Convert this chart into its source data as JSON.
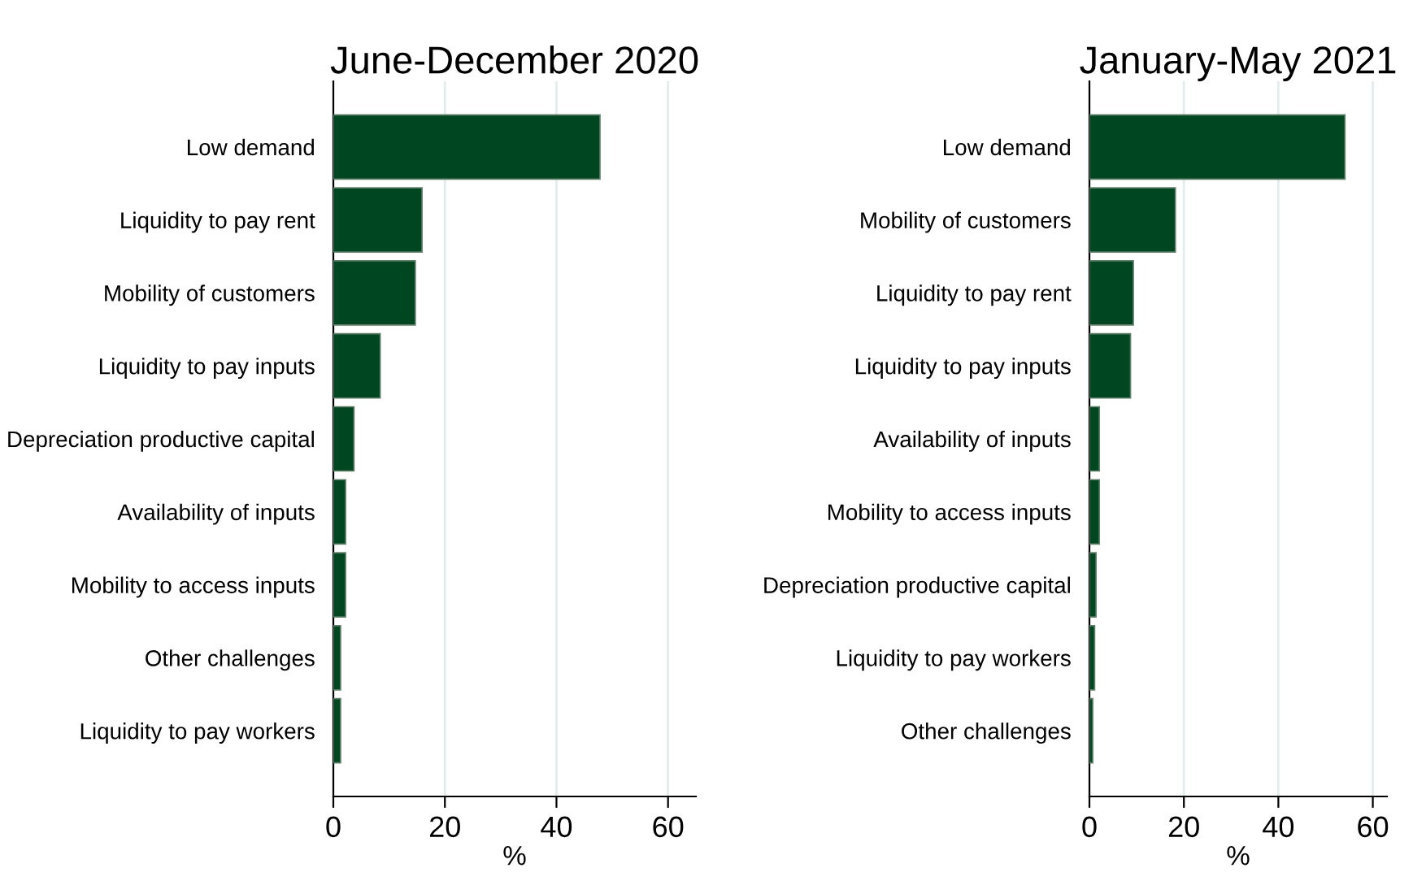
{
  "chart_data": [
    {
      "type": "bar",
      "orientation": "horizontal",
      "title": "June-December 2020",
      "xlabel": "%",
      "categories": [
        "Low demand",
        "Liquidity to pay rent",
        "Mobility of customers",
        "Liquidity to pay inputs",
        "Depreciation productive capital",
        "Availability of inputs",
        "Mobility to access inputs",
        "Other challenges",
        "Liquidity to pay workers"
      ],
      "values": [
        47.8,
        15.9,
        14.7,
        8.4,
        3.7,
        2.2,
        2.2,
        1.3,
        1.3
      ],
      "color": "#004620",
      "xlim": [
        0,
        65
      ],
      "xticks": [
        0,
        20,
        40,
        60
      ],
      "grid": "x"
    },
    {
      "type": "bar",
      "orientation": "horizontal",
      "title": "January-May 2021",
      "xlabel": "%",
      "categories": [
        "Low demand",
        "Mobility of customers",
        "Liquidity to pay rent",
        "Liquidity to pay inputs",
        "Availability of inputs",
        "Mobility to access inputs",
        "Depreciation productive capital",
        "Liquidity to pay workers",
        "Other challenges"
      ],
      "values": [
        54.1,
        18.2,
        9.3,
        8.7,
        2.1,
        2.1,
        1.4,
        1.1,
        0.7
      ],
      "color": "#004620",
      "xlim": [
        0,
        63
      ],
      "xticks": [
        0,
        20,
        40,
        60
      ],
      "grid": "x"
    }
  ]
}
